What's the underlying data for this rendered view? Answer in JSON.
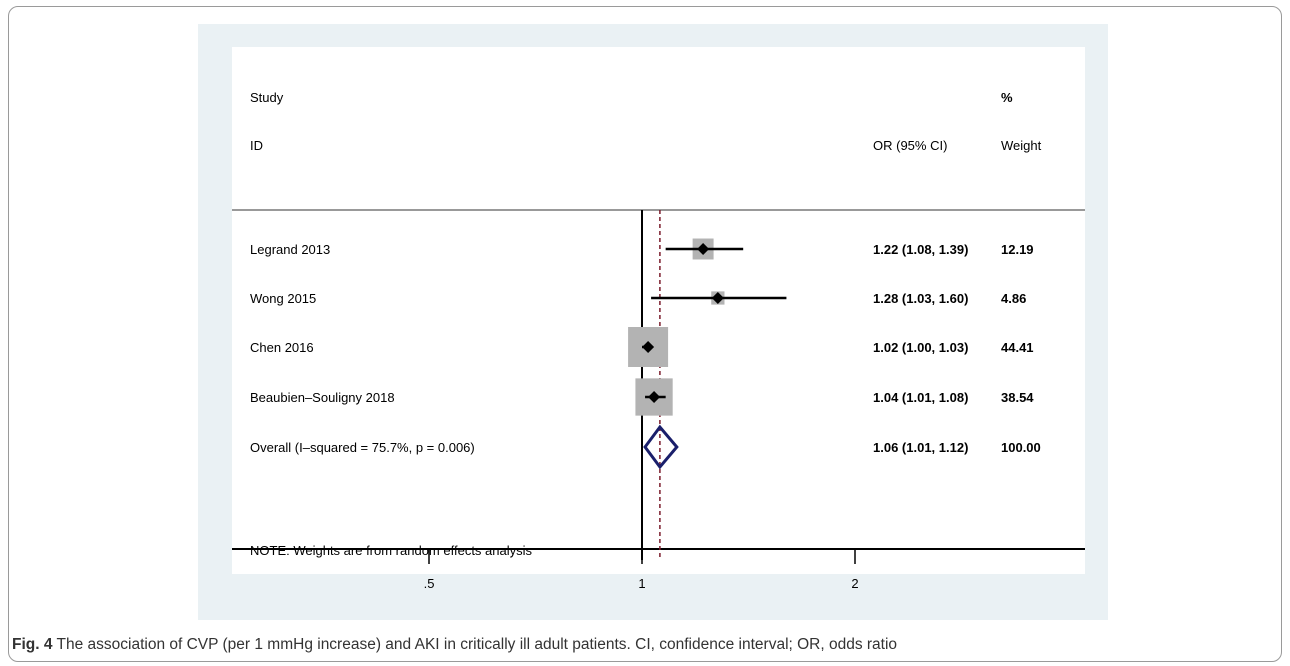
{
  "figure": {
    "caption_label": "Fig. 4",
    "caption_text": " The association of CVP (per 1 mmHg increase) and AKI in critically ill adult patients. CI, confidence interval; OR, odds ratio"
  },
  "chart_data": {
    "type": "forest",
    "columns": {
      "study_label_line1": "Study",
      "study_label_line2": "ID",
      "or_label": "OR (95% CI)",
      "weight_label_line1": "%",
      "weight_label_line2": "Weight"
    },
    "studies": [
      {
        "id": "Legrand 2013",
        "or": 1.22,
        "lo": 1.08,
        "hi": 1.39,
        "ci_text": "1.22 (1.08, 1.39)",
        "weight": 12.19,
        "weight_text": "12.19"
      },
      {
        "id": "Wong 2015",
        "or": 1.28,
        "lo": 1.03,
        "hi": 1.6,
        "ci_text": "1.28 (1.03, 1.60)",
        "weight": 4.86,
        "weight_text": "4.86"
      },
      {
        "id": "Chen 2016",
        "or": 1.02,
        "lo": 1.0,
        "hi": 1.03,
        "ci_text": "1.02 (1.00, 1.03)",
        "weight": 44.41,
        "weight_text": "44.41"
      },
      {
        "id": "Beaubien–Souligny 2018",
        "or": 1.04,
        "lo": 1.01,
        "hi": 1.08,
        "ci_text": "1.04 (1.01, 1.08)",
        "weight": 38.54,
        "weight_text": "38.54"
      }
    ],
    "overall": {
      "id": "Overall  (I–squared = 75.7%, p = 0.006)",
      "or": 1.06,
      "lo": 1.01,
      "hi": 1.12,
      "ci_text": "1.06 (1.01, 1.12)",
      "weight_text": "100.00"
    },
    "note": "NOTE: Weights are from random effects analysis",
    "x_scale": "log",
    "x_ticks": [
      {
        "value": 0.5,
        "label": ".5"
      },
      {
        "value": 1,
        "label": "1"
      },
      {
        "value": 2,
        "label": "2"
      }
    ],
    "null_line": 1,
    "colors": {
      "box": "#b3b3b3",
      "ci": "#000000",
      "overall": "#1a1f6b",
      "overall_line": "#7a1a2a"
    }
  }
}
